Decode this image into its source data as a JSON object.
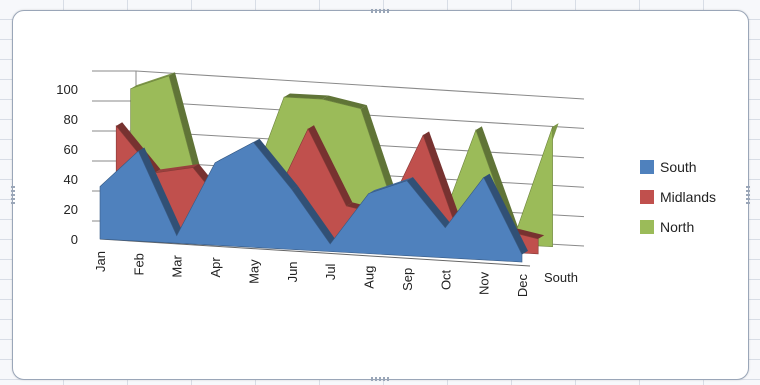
{
  "chart_data": {
    "type": "area",
    "subtype": "3d-area",
    "categories": [
      "Jan",
      "Feb",
      "Mar",
      "Apr",
      "May",
      "Jun",
      "Jul",
      "Aug",
      "Sep",
      "Oct",
      "Nov",
      "Dec"
    ],
    "series": [
      {
        "name": "South",
        "values": [
          35,
          60,
          5,
          55,
          70,
          40,
          5,
          40,
          50,
          20,
          55,
          5
        ],
        "color": "#4f81bd"
      },
      {
        "name": "Midlands",
        "values": [
          70,
          40,
          45,
          15,
          20,
          75,
          25,
          20,
          75,
          5,
          15,
          10
        ],
        "color": "#c0504d"
      },
      {
        "name": "North",
        "values": [
          90,
          100,
          5,
          20,
          90,
          90,
          85,
          10,
          5,
          75,
          5,
          80
        ],
        "color": "#9bbb59"
      }
    ],
    "y_ticks": [
      "0",
      "20",
      "40",
      "60",
      "80",
      "100"
    ],
    "ylim": [
      0,
      100
    ],
    "depth_axis_label": "South",
    "legend": {
      "position": "right",
      "entries": [
        "South",
        "Midlands",
        "North"
      ]
    },
    "grid": true
  }
}
